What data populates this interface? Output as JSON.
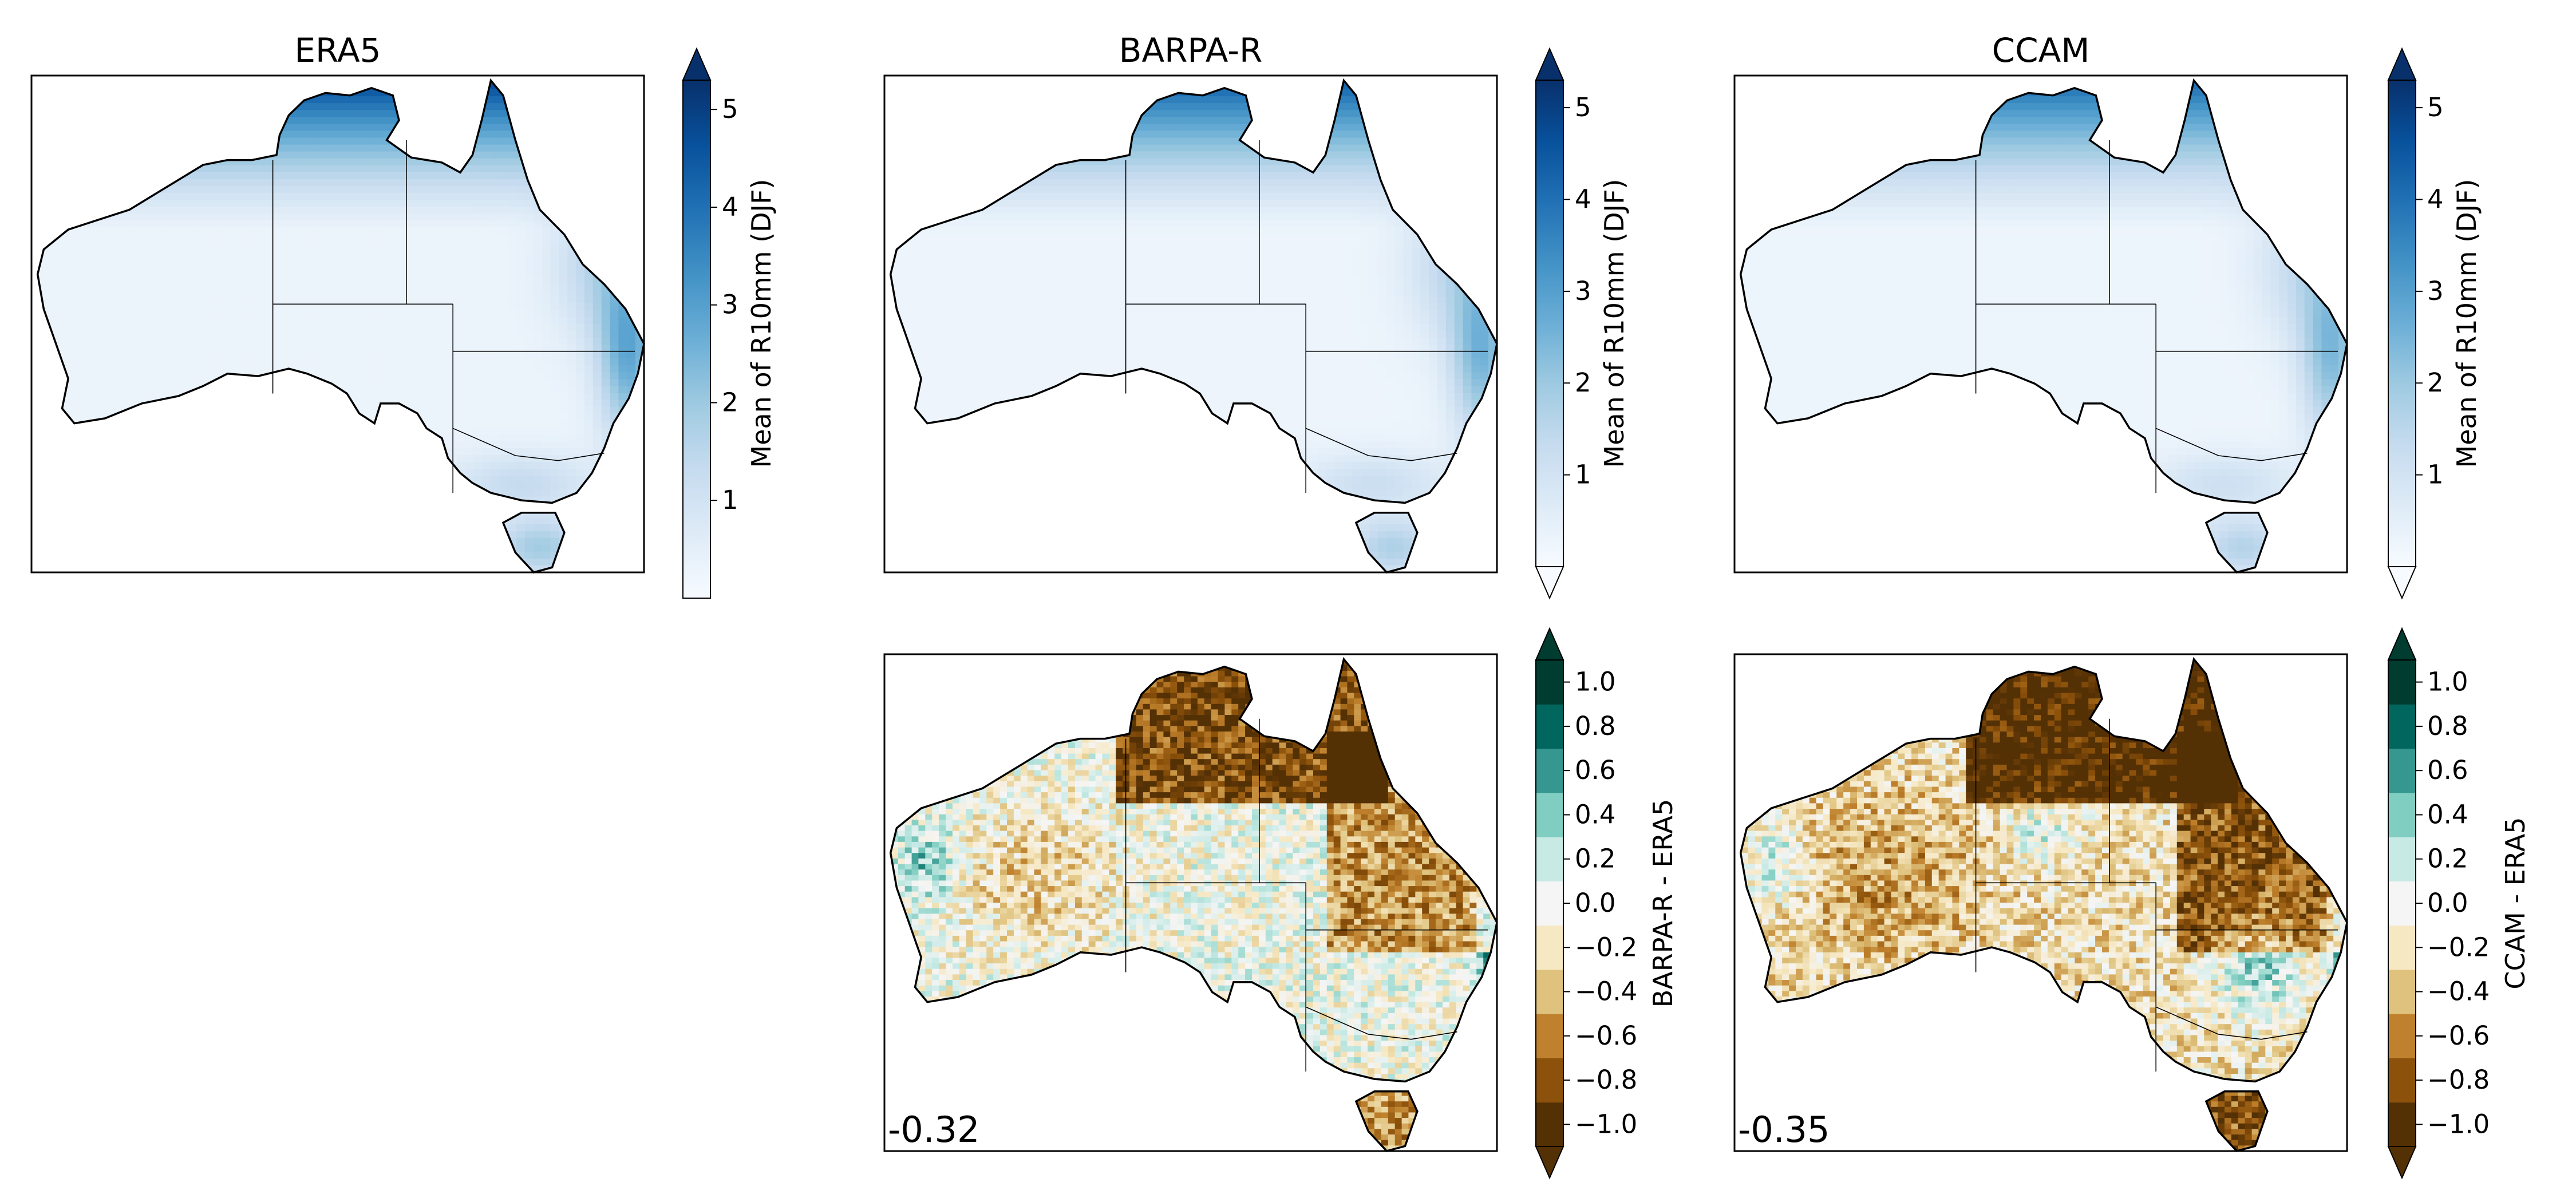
{
  "panels": [
    {
      "id": "era5",
      "title": "ERA5",
      "field": "mean",
      "model": "era5"
    },
    {
      "id": "barpa",
      "title": "BARPA-R",
      "field": "mean",
      "model": "barpa"
    },
    {
      "id": "ccam",
      "title": "CCAM",
      "field": "mean",
      "model": "ccam"
    },
    {
      "id": "barpa-diff",
      "title": "",
      "field": "diff",
      "model": "barpa",
      "annotation": "-0.32"
    },
    {
      "id": "ccam-diff",
      "title": "",
      "field": "diff",
      "model": "ccam",
      "annotation": "-0.35"
    }
  ],
  "colorbars": [
    {
      "id": "cb-era5",
      "label": "Mean of R10mm (DJF)",
      "ticks": [
        "1",
        "2",
        "3",
        "4",
        "5"
      ],
      "tick_values": [
        1,
        2,
        3,
        4,
        5
      ],
      "vmin": 0.0,
      "vmax": 5.3,
      "extend": "max",
      "cmap": "blues"
    },
    {
      "id": "cb-barpa",
      "label": "Mean of R10mm (DJF)",
      "ticks": [
        "1",
        "2",
        "3",
        "4",
        "5"
      ],
      "tick_values": [
        1,
        2,
        3,
        4,
        5
      ],
      "vmin": 0.0,
      "vmax": 5.3,
      "extend": "both",
      "cmap": "blues"
    },
    {
      "id": "cb-ccam",
      "label": "Mean of R10mm (DJF)",
      "ticks": [
        "1",
        "2",
        "3",
        "4",
        "5"
      ],
      "tick_values": [
        1,
        2,
        3,
        4,
        5
      ],
      "vmin": 0.0,
      "vmax": 5.3,
      "extend": "both",
      "cmap": "blues"
    },
    {
      "id": "cb-barpa-diff",
      "label": "BARPA-R - ERA5",
      "ticks": [
        "−1.0",
        "−0.8",
        "−0.6",
        "−0.4",
        "−0.2",
        "0.0",
        "0.2",
        "0.4",
        "0.6",
        "0.8",
        "1.0"
      ],
      "tick_values": [
        -1.0,
        -0.8,
        -0.6,
        -0.4,
        -0.2,
        0.0,
        0.2,
        0.4,
        0.6,
        0.8,
        1.0
      ],
      "vmin": -1.1,
      "vmax": 1.1,
      "extend": "both",
      "cmap": "brbg"
    },
    {
      "id": "cb-ccam-diff",
      "label": "CCAM - ERA5",
      "ticks": [
        "−1.0",
        "−0.8",
        "−0.6",
        "−0.4",
        "−0.2",
        "0.0",
        "0.2",
        "0.4",
        "0.6",
        "0.8",
        "1.0"
      ],
      "tick_values": [
        -1.0,
        -0.8,
        -0.6,
        -0.4,
        -0.2,
        0.0,
        0.2,
        0.4,
        0.6,
        0.8,
        1.0
      ],
      "vmin": -1.1,
      "vmax": 1.1,
      "extend": "both",
      "cmap": "brbg"
    }
  ],
  "colors": {
    "blues": [
      "#f7fbff",
      "#deebf7",
      "#c6dbef",
      "#9ecae1",
      "#6baed6",
      "#4292c6",
      "#2171b5",
      "#08519c",
      "#08306b"
    ],
    "brbg": [
      "#543005",
      "#8c510a",
      "#bf812d",
      "#dfc27d",
      "#f6e8c3",
      "#f5f5f5",
      "#c7eae5",
      "#80cdc1",
      "#35978f",
      "#01665e",
      "#003c30"
    ]
  }
}
